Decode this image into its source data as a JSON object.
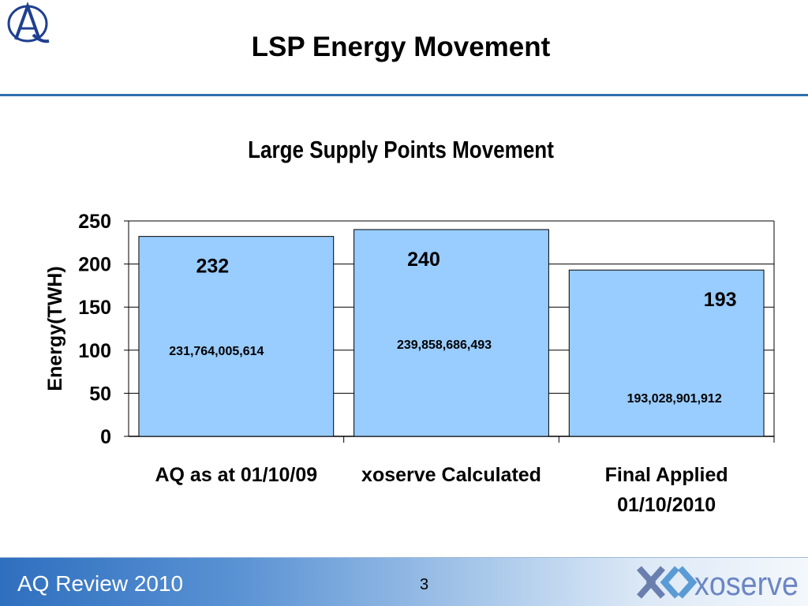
{
  "slide": {
    "title": "LSP Energy Movement",
    "footer_left": "AQ Review 2010",
    "page_number": "3",
    "brand": "xoserve",
    "logo_icon": "aq-logo-icon"
  },
  "chart_data": {
    "type": "bar",
    "title": "Large Supply Points Movement",
    "xlabel": "",
    "ylabel": "Energy(TWH)",
    "ylim": [
      0,
      250
    ],
    "yticks": [
      0,
      50,
      100,
      150,
      200,
      250
    ],
    "categories": [
      "AQ as at 01/10/09",
      "xoserve Calculated",
      "Final Applied 01/10/2010"
    ],
    "values": [
      232,
      240,
      193
    ],
    "value_labels": [
      "232",
      "240",
      "193"
    ],
    "detail_labels": [
      "231,764,005,614",
      "239,858,686,493",
      "193,028,901,912"
    ],
    "grid": true,
    "bar_color": "#99ccff",
    "accent_color": "#2f6fae"
  }
}
